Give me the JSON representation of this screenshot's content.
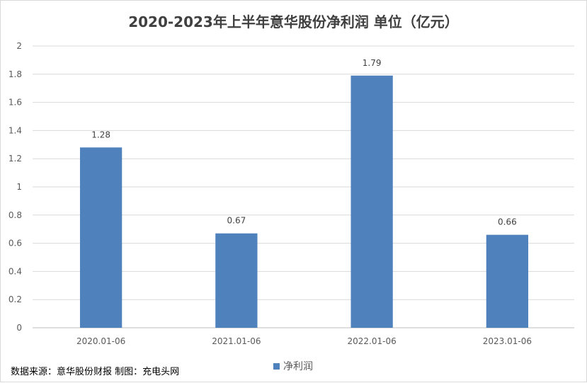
{
  "chart_data": {
    "type": "bar",
    "title": "2020-2023年上半年意华股份净利润 单位（亿元）",
    "categories": [
      "2020.01-06",
      "2021.01-06",
      "2022.01-06",
      "2023.01-06"
    ],
    "series": [
      {
        "name": "净利润",
        "values": [
          1.28,
          0.67,
          1.79,
          0.66
        ],
        "color": "#4f81bd"
      }
    ],
    "data_labels": [
      "1.28",
      "0.67",
      "1.79",
      "0.66"
    ],
    "ylim": [
      0,
      2
    ],
    "yticks": [
      "0",
      "0.2",
      "0.4",
      "0.6",
      "0.8",
      "1",
      "1.2",
      "1.4",
      "1.6",
      "1.8",
      "2"
    ],
    "grid": true,
    "legend": "bottom",
    "xlabel": "",
    "ylabel": ""
  },
  "source_note": "数据来源：意华股份财报  制图：充电头网"
}
